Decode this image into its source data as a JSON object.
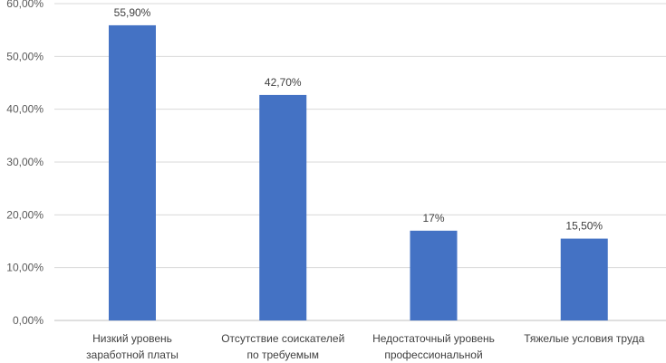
{
  "chart_data": {
    "type": "bar",
    "categories": [
      [
        "Низкий уровень",
        "заработной платы"
      ],
      [
        "Отсутствие соискателей",
        "по требуемым"
      ],
      [
        "Недостаточный уровень",
        "профессиональной"
      ],
      [
        "Тяжелые условия труда"
      ]
    ],
    "values": [
      55.9,
      42.7,
      17,
      15.5
    ],
    "data_labels": [
      "55,90%",
      "42,70%",
      "17%",
      "15,50%"
    ],
    "yticks": [
      "0,00%",
      "10,00%",
      "20,00%",
      "30,00%",
      "40,00%",
      "50,00%",
      "60,00%"
    ],
    "ylim": [
      0,
      60
    ],
    "grid": true,
    "bar_color": "#4472c4",
    "grid_color": "#d9d9d9",
    "title": "",
    "xlabel": "",
    "ylabel": ""
  }
}
